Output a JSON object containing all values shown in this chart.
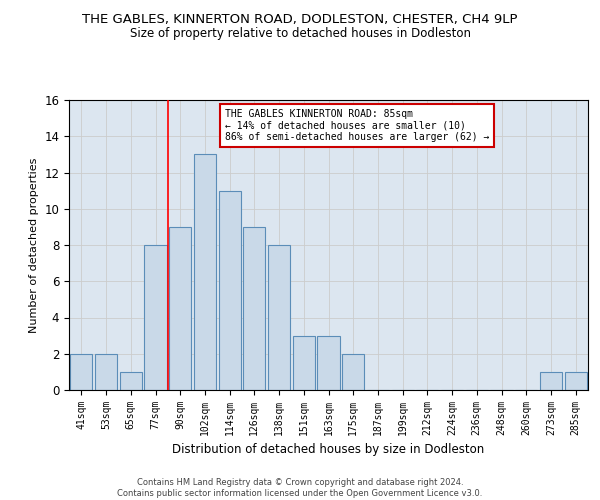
{
  "title": "THE GABLES, KINNERTON ROAD, DODLESTON, CHESTER, CH4 9LP",
  "subtitle": "Size of property relative to detached houses in Dodleston",
  "xlabel": "Distribution of detached houses by size in Dodleston",
  "ylabel": "Number of detached properties",
  "footer1": "Contains HM Land Registry data © Crown copyright and database right 2024.",
  "footer2": "Contains public sector information licensed under the Open Government Licence v3.0.",
  "categories": [
    "41sqm",
    "53sqm",
    "65sqm",
    "77sqm",
    "90sqm",
    "102sqm",
    "114sqm",
    "126sqm",
    "138sqm",
    "151sqm",
    "163sqm",
    "175sqm",
    "187sqm",
    "199sqm",
    "212sqm",
    "224sqm",
    "236sqm",
    "248sqm",
    "260sqm",
    "273sqm",
    "285sqm"
  ],
  "values": [
    2,
    2,
    1,
    8,
    9,
    13,
    11,
    9,
    8,
    3,
    3,
    2,
    0,
    0,
    0,
    0,
    0,
    0,
    0,
    1,
    1
  ],
  "bar_color": "#c9d9e8",
  "bar_edge_color": "#5b8db8",
  "red_line_x": 3.5,
  "annotation_text": "THE GABLES KINNERTON ROAD: 85sqm\n← 14% of detached houses are smaller (10)\n86% of semi-detached houses are larger (62) →",
  "annotation_box_color": "#ffffff",
  "annotation_box_edge": "#cc0000",
  "ylim": [
    0,
    16
  ],
  "yticks": [
    0,
    2,
    4,
    6,
    8,
    10,
    12,
    14,
    16
  ],
  "grid_color": "#cccccc",
  "background_color": "#dce6f0",
  "title_fontsize": 9.5,
  "subtitle_fontsize": 8.5
}
